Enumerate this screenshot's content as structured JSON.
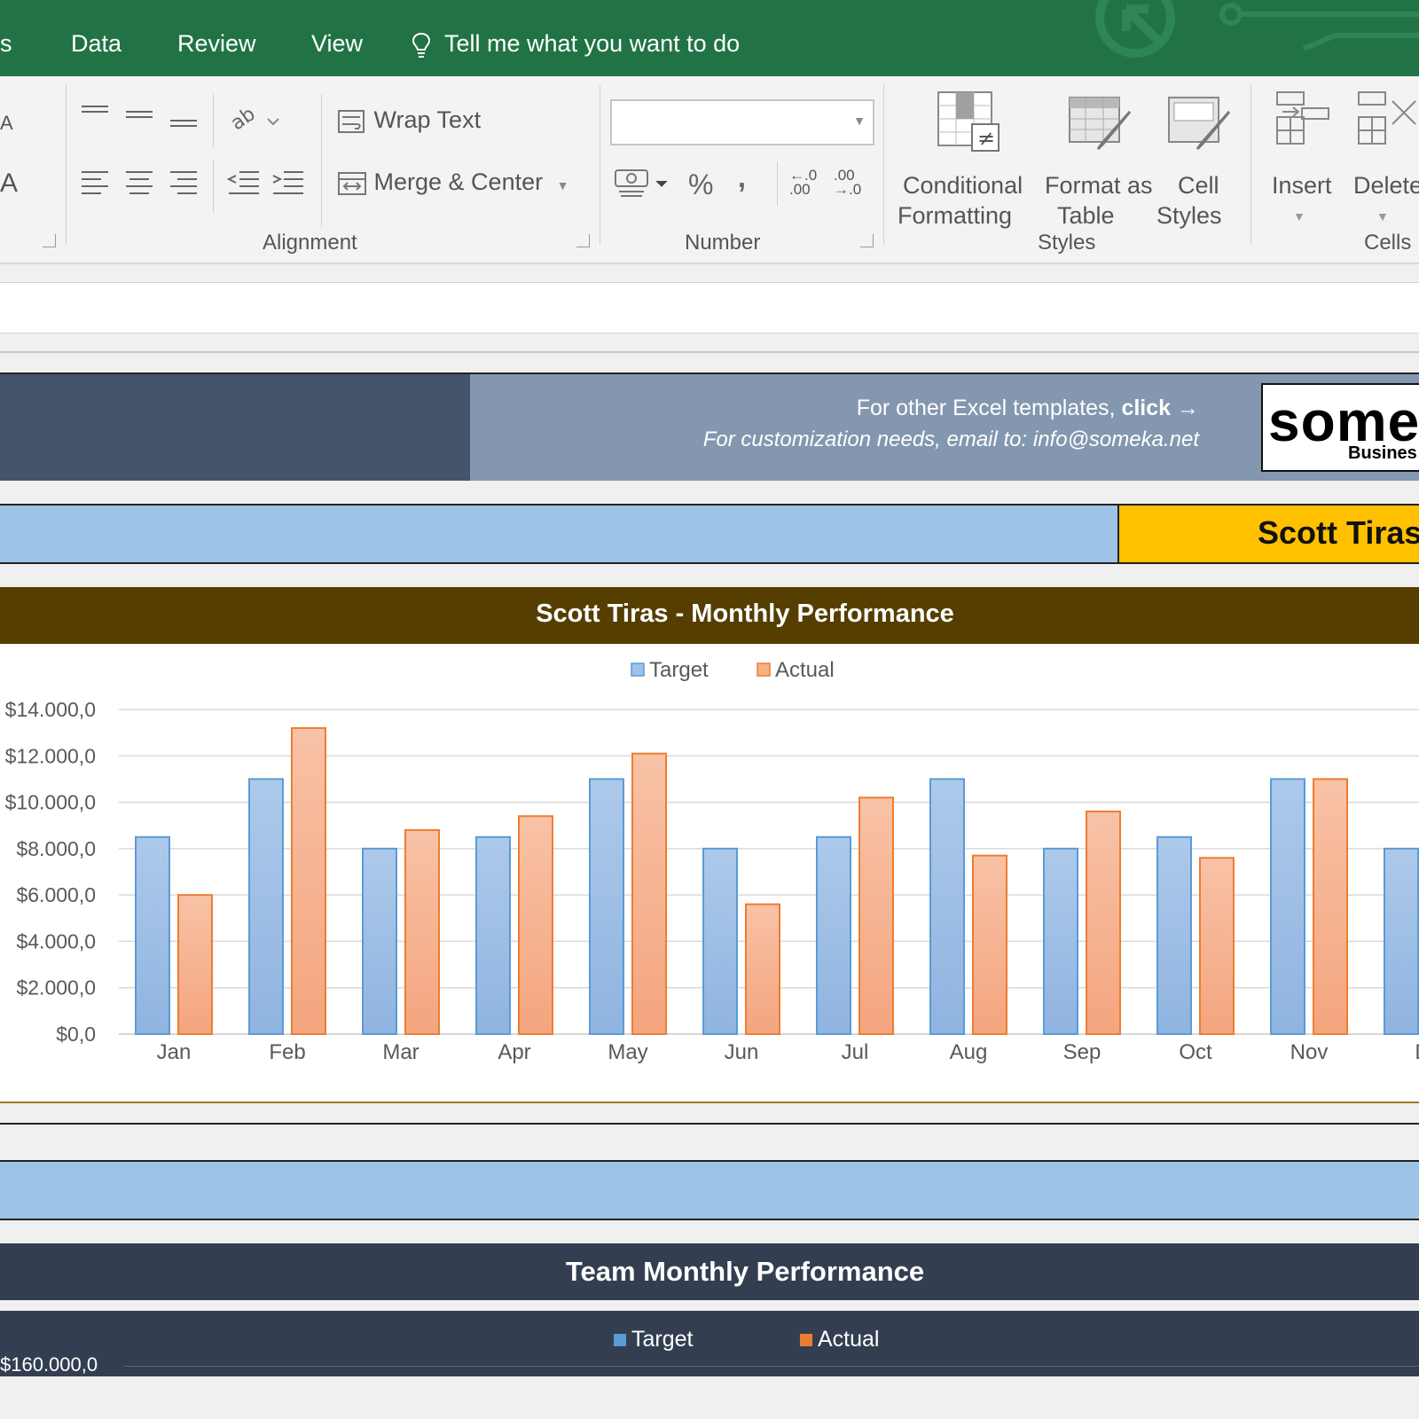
{
  "tabs": [
    "s",
    "Data",
    "Review",
    "View"
  ],
  "tell_me": "Tell me what you want to do",
  "ribbon": {
    "alignment": {
      "wrap_text": "Wrap Text",
      "merge_center": "Merge & Center",
      "label": "Alignment"
    },
    "number": {
      "format_value": "",
      "percent": "%",
      "comma": ",",
      "inc_decimal": "←.0 .00",
      "dec_decimal": ".00 →.0",
      "label": "Number"
    },
    "styles": {
      "conditional_line1": "Conditional",
      "conditional_line2": "Formatting",
      "format_table_line1": "Format as",
      "format_table_line2": "Table",
      "cell_styles_line1": "Cell",
      "cell_styles_line2": "Styles",
      "label": "Styles"
    },
    "cells": {
      "insert": "Insert",
      "delete": "Delete",
      "label": "Cells"
    },
    "font_fragment": "A"
  },
  "banner": {
    "promo_text": "For other Excel templates, ",
    "promo_link": "click →",
    "email_text": "For customization needs, email to: info@someka.net",
    "logo_text": "some",
    "logo_sub": "Busines"
  },
  "employee_name": "Scott Tiras",
  "colors": {
    "excel_green": "#217346",
    "target": "#9dc3e6",
    "target_border": "#5b9bd5",
    "actual": "#f4b183",
    "actual_border": "#ed7d31",
    "chart_header": "#553e00",
    "team_header": "#333f50"
  },
  "chart_data": {
    "type": "bar",
    "title": "Scott Tiras - Monthly Performance",
    "categories": [
      "Jan",
      "Feb",
      "Mar",
      "Apr",
      "May",
      "Jun",
      "Jul",
      "Aug",
      "Sep",
      "Oct",
      "Nov",
      "Dec"
    ],
    "category_labels_shown": [
      "Jan",
      "Feb",
      "Mar",
      "Apr",
      "May",
      "Jun",
      "Jul",
      "Aug",
      "Sep",
      "Oct",
      "Nov",
      "D"
    ],
    "series": [
      {
        "name": "Target",
        "values": [
          8500,
          11000,
          8000,
          8500,
          11000,
          8000,
          8500,
          11000,
          8000,
          8500,
          11000,
          8000
        ]
      },
      {
        "name": "Actual",
        "values": [
          6000,
          13200,
          8800,
          9400,
          12100,
          5600,
          10200,
          7700,
          9600,
          7600,
          11000,
          null
        ]
      }
    ],
    "ylim": [
      0,
      14000
    ],
    "yticks": [
      "$0,0",
      "$2.000,0",
      "$4.000,0",
      "$6.000,0",
      "$8.000,0",
      "$10.000,0",
      "$12.000,0",
      "$14.000,0"
    ],
    "ytick_values": [
      0,
      2000,
      4000,
      6000,
      8000,
      10000,
      12000,
      14000
    ],
    "legend": "top",
    "grid": true
  },
  "team_chart": {
    "title": "Team Monthly Performance",
    "legend": [
      "Target",
      "Actual"
    ],
    "top_tick": "$160.000,0"
  }
}
